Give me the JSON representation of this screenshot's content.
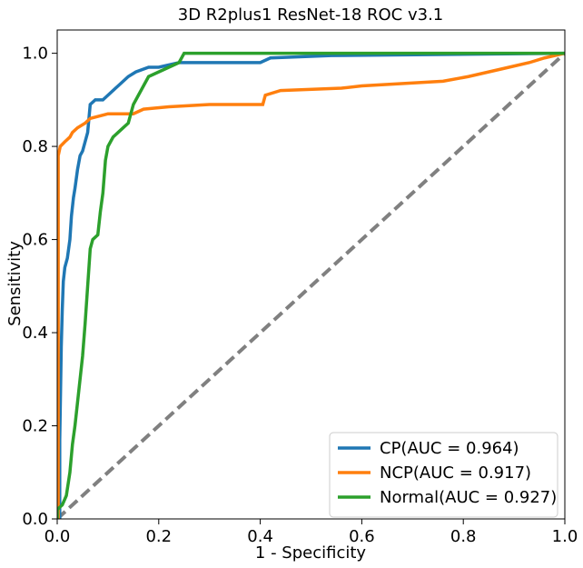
{
  "chart_data": {
    "type": "line",
    "title": "3D R2plus1 ResNet-18 ROC v3.1",
    "xlabel": "1 - Specificity",
    "ylabel": "Sensitivity",
    "xlim": [
      0.0,
      1.0
    ],
    "ylim": [
      0.0,
      1.05
    ],
    "xticks": [
      "0.0",
      "0.2",
      "0.4",
      "0.6",
      "0.8",
      "1.0"
    ],
    "yticks": [
      "0.0",
      "0.2",
      "0.4",
      "0.6",
      "0.8",
      "1.0"
    ],
    "grid": false,
    "legend_position": "lower-right",
    "series": [
      {
        "name": "CP(AUC = 0.964)",
        "color": "#1f77b4",
        "points": [
          [
            0.0,
            0.0
          ],
          [
            0.005,
            0.0
          ],
          [
            0.005,
            0.17
          ],
          [
            0.008,
            0.37
          ],
          [
            0.01,
            0.45
          ],
          [
            0.012,
            0.51
          ],
          [
            0.015,
            0.54
          ],
          [
            0.02,
            0.56
          ],
          [
            0.025,
            0.6
          ],
          [
            0.028,
            0.65
          ],
          [
            0.032,
            0.69
          ],
          [
            0.035,
            0.71
          ],
          [
            0.04,
            0.75
          ],
          [
            0.045,
            0.78
          ],
          [
            0.05,
            0.79
          ],
          [
            0.055,
            0.81
          ],
          [
            0.06,
            0.83
          ],
          [
            0.065,
            0.89
          ],
          [
            0.075,
            0.9
          ],
          [
            0.09,
            0.9
          ],
          [
            0.1,
            0.91
          ],
          [
            0.12,
            0.93
          ],
          [
            0.13,
            0.94
          ],
          [
            0.14,
            0.95
          ],
          [
            0.155,
            0.96
          ],
          [
            0.18,
            0.97
          ],
          [
            0.2,
            0.97
          ],
          [
            0.24,
            0.98
          ],
          [
            0.4,
            0.98
          ],
          [
            0.42,
            0.99
          ],
          [
            0.54,
            0.995
          ],
          [
            1.0,
            1.0
          ]
        ]
      },
      {
        "name": "NCP(AUC = 0.917)",
        "color": "#ff7f0e",
        "points": [
          [
            0.0,
            0.0
          ],
          [
            0.002,
            0.0
          ],
          [
            0.002,
            0.78
          ],
          [
            0.006,
            0.8
          ],
          [
            0.015,
            0.81
          ],
          [
            0.025,
            0.82
          ],
          [
            0.03,
            0.83
          ],
          [
            0.04,
            0.84
          ],
          [
            0.055,
            0.85
          ],
          [
            0.065,
            0.86
          ],
          [
            0.1,
            0.87
          ],
          [
            0.15,
            0.87
          ],
          [
            0.17,
            0.88
          ],
          [
            0.22,
            0.885
          ],
          [
            0.3,
            0.89
          ],
          [
            0.405,
            0.89
          ],
          [
            0.41,
            0.91
          ],
          [
            0.44,
            0.92
          ],
          [
            0.56,
            0.925
          ],
          [
            0.6,
            0.93
          ],
          [
            0.76,
            0.94
          ],
          [
            0.81,
            0.95
          ],
          [
            0.85,
            0.96
          ],
          [
            0.89,
            0.97
          ],
          [
            0.93,
            0.98
          ],
          [
            0.96,
            0.99
          ],
          [
            0.98,
            0.995
          ],
          [
            1.0,
            1.0
          ]
        ]
      },
      {
        "name": "Normal(AUC = 0.927)",
        "color": "#2ca02c",
        "points": [
          [
            0.0,
            0.0
          ],
          [
            0.0,
            0.02
          ],
          [
            0.01,
            0.03
          ],
          [
            0.018,
            0.05
          ],
          [
            0.025,
            0.1
          ],
          [
            0.03,
            0.16
          ],
          [
            0.035,
            0.2
          ],
          [
            0.04,
            0.25
          ],
          [
            0.045,
            0.3
          ],
          [
            0.05,
            0.35
          ],
          [
            0.055,
            0.42
          ],
          [
            0.06,
            0.5
          ],
          [
            0.065,
            0.58
          ],
          [
            0.07,
            0.6
          ],
          [
            0.08,
            0.61
          ],
          [
            0.085,
            0.66
          ],
          [
            0.09,
            0.7
          ],
          [
            0.095,
            0.77
          ],
          [
            0.1,
            0.8
          ],
          [
            0.11,
            0.82
          ],
          [
            0.12,
            0.83
          ],
          [
            0.13,
            0.84
          ],
          [
            0.14,
            0.85
          ],
          [
            0.15,
            0.89
          ],
          [
            0.16,
            0.91
          ],
          [
            0.17,
            0.93
          ],
          [
            0.18,
            0.95
          ],
          [
            0.2,
            0.96
          ],
          [
            0.22,
            0.97
          ],
          [
            0.24,
            0.98
          ],
          [
            0.25,
            1.0
          ],
          [
            1.0,
            1.0
          ]
        ]
      },
      {
        "name": "",
        "style": "dashed",
        "color": "#808080",
        "points": [
          [
            0.0,
            0.0
          ],
          [
            1.0,
            1.0
          ]
        ]
      }
    ]
  }
}
